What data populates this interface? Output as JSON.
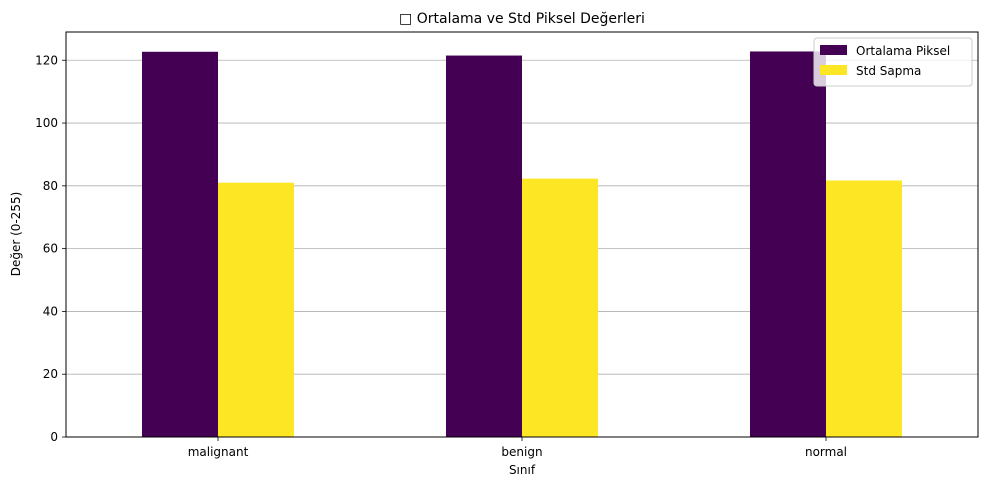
{
  "chart_data": {
    "type": "bar",
    "title": "□ Ortalama ve Std Piksel Değerleri",
    "xlabel": "Sınıf",
    "ylabel": "Değer (0-255)",
    "categories": [
      "malignant",
      "benign",
      "normal"
    ],
    "series": [
      {
        "name": "Ortalama Piksel",
        "color": "#440154",
        "values": [
          122.7,
          121.5,
          122.8
        ]
      },
      {
        "name": "Std Sapma",
        "color": "#fde725",
        "values": [
          81.0,
          82.3,
          81.7
        ]
      }
    ],
    "ylim": [
      0,
      129
    ],
    "yticks": [
      0,
      20,
      40,
      60,
      80,
      100,
      120
    ],
    "grid": "y",
    "legend_position": "top-right"
  }
}
